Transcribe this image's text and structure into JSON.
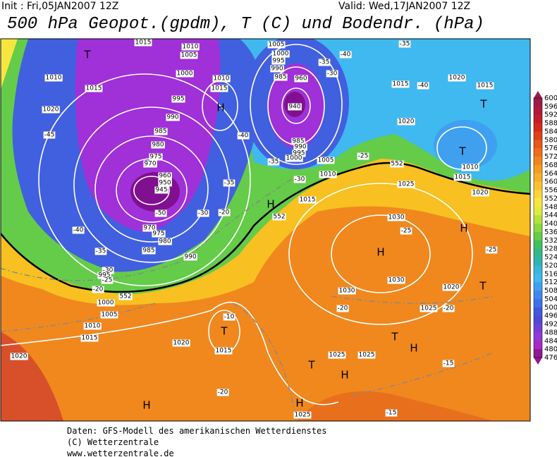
{
  "header": {
    "init": "Init : Fri,05JAN2007 12Z",
    "valid": "Valid: Wed,17JAN2007 12Z",
    "title": "500 hPa Geopot.(gpdm), T (C) und Bodendr. (hPa)"
  },
  "colorbar": {
    "labels": [
      600,
      596,
      592,
      588,
      584,
      580,
      576,
      572,
      568,
      564,
      560,
      556,
      552,
      548,
      544,
      540,
      536,
      532,
      528,
      524,
      520,
      516,
      512,
      508,
      504,
      500,
      496,
      492,
      488,
      484,
      480,
      476
    ],
    "colors": [
      "#9c1a4a",
      "#b0183e",
      "#c41c2c",
      "#d42a1c",
      "#e04018",
      "#e85818",
      "#ee6e1a",
      "#f2841c",
      "#f59a22",
      "#f8ae28",
      "#fac232",
      "#fcd63a",
      "#f8e640",
      "#dcec40",
      "#b4e23c",
      "#8cd840",
      "#64cc48",
      "#40c060",
      "#30b888",
      "#30b4b0",
      "#38b8d8",
      "#40b8f0",
      "#40a0f0",
      "#4088f0",
      "#4070e8",
      "#4058e0",
      "#5048d8",
      "#7040d8",
      "#9038d8",
      "#a828c8",
      "#901890"
    ]
  },
  "map": {
    "labels": [
      "T",
      "1015",
      "1010",
      "1005",
      "1000",
      "1010",
      "1015",
      "1020",
      "995",
      "990",
      "985",
      "980",
      "975",
      "970",
      "960",
      "950",
      "945",
      "-50",
      "970",
      "975",
      "980",
      "985",
      "990",
      "-40",
      "-45",
      "-40",
      "-35",
      "-30",
      "H",
      "1010",
      "1015",
      "1005",
      "1000",
      "995",
      "990",
      "985",
      "960",
      "940",
      "985",
      "990",
      "995",
      "1000",
      "1005",
      "1010",
      "1015",
      "-40",
      "-35",
      "-30",
      "-35",
      "-40",
      "1015",
      "1020",
      "1020",
      "1015",
      "T",
      "T",
      "1010",
      "1015",
      "1020",
      "-25",
      "-30",
      "-35",
      "-20",
      "1025",
      "1030",
      "-25",
      "H",
      "H",
      "H",
      "-25",
      "1030",
      "1030",
      "1020",
      "T",
      "1025",
      "-20",
      "-20",
      "T",
      "1015",
      "-10",
      "1020",
      "-35",
      "-30",
      "995",
      "-25",
      "-20",
      "1000",
      "1005",
      "1010",
      "1015",
      "1020",
      "H",
      "T",
      "H",
      "T",
      "H",
      "1025",
      "1025",
      "H",
      "1025",
      "-20",
      "-15",
      "-15",
      "552",
      "552",
      "552"
    ]
  },
  "footer": {
    "lines": [
      "Daten: GFS-Modell des amerikanischen Wetterdienstes",
      "(C) Wetterzentrale",
      "www.wetterzentrale.de"
    ]
  }
}
